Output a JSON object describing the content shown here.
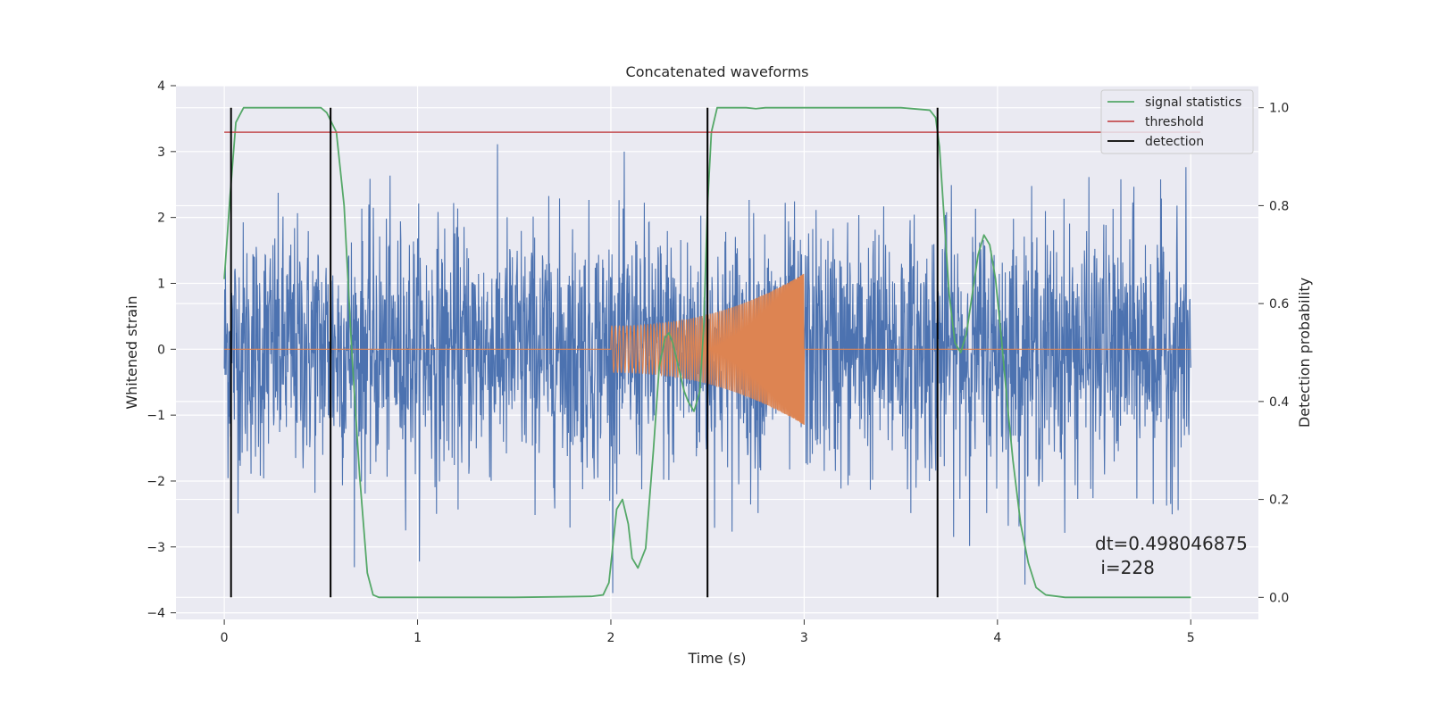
{
  "chart_data": {
    "type": "line",
    "title": "Concatenated waveforms",
    "xlabel": "Time (s)",
    "ylabel": "Whitened strain",
    "ylabel_right": "Detection probability",
    "xlim": [
      -0.25,
      5.35
    ],
    "ylim": [
      -4.1,
      4.0
    ],
    "ylim_right": [
      -0.045,
      1.045
    ],
    "xticks": [
      "0",
      "1",
      "2",
      "3",
      "4",
      "5"
    ],
    "yticks": [
      "4",
      "3",
      "2",
      "1",
      "0",
      "−1",
      "−2",
      "−3",
      "−4"
    ],
    "yticks_right": [
      "1.0",
      "0.8",
      "0.6",
      "0.4",
      "0.2",
      "0.0"
    ],
    "grid": true,
    "legend_placement": "top-right",
    "colors": {
      "noise": "#4c72b0",
      "chirp": "#dd8452",
      "signal_statistics": "#55a868",
      "threshold": "#c44e52",
      "detection": "#000000",
      "background": "#eaeaf2",
      "grid": "#ffffff"
    },
    "noise": {
      "x_range": [
        0,
        5
      ],
      "envelope": [
        -3.7,
        3.6
      ]
    },
    "chirp": {
      "start": 2.0,
      "end": 3.0,
      "amplitude_start": 0.35,
      "amplitude_end": 1.15
    },
    "series": [
      {
        "name": "signal statistics",
        "axis": "right",
        "x": [
          0,
          0.03,
          0.06,
          0.1,
          0.3,
          0.5,
          0.53,
          0.58,
          0.62,
          0.66,
          0.7,
          0.74,
          0.77,
          0.8,
          1.0,
          1.5,
          1.9,
          1.96,
          1.99,
          2.03,
          2.06,
          2.09,
          2.11,
          2.14,
          2.18,
          2.22,
          2.25,
          2.28,
          2.3,
          2.32,
          2.35,
          2.38,
          2.4,
          2.43,
          2.46,
          2.48,
          2.5,
          2.52,
          2.55,
          2.7,
          2.75,
          2.8,
          3.0,
          3.5,
          3.65,
          3.68,
          3.7,
          3.72,
          3.75,
          3.78,
          3.81,
          3.84,
          3.87,
          3.9,
          3.93,
          3.96,
          3.99,
          4.02,
          4.05,
          4.08,
          4.12,
          4.16,
          4.2,
          4.25,
          4.35,
          4.6,
          5.0
        ],
        "y": [
          0.65,
          0.82,
          0.97,
          1.0,
          1.0,
          1.0,
          0.99,
          0.95,
          0.8,
          0.5,
          0.25,
          0.05,
          0.005,
          0.0,
          0.0,
          0.0,
          0.002,
          0.005,
          0.03,
          0.18,
          0.2,
          0.15,
          0.08,
          0.06,
          0.1,
          0.3,
          0.47,
          0.53,
          0.54,
          0.52,
          0.47,
          0.42,
          0.4,
          0.38,
          0.42,
          0.55,
          0.8,
          0.95,
          1.0,
          1.0,
          0.998,
          1.0,
          1.0,
          1.0,
          0.995,
          0.98,
          0.92,
          0.8,
          0.62,
          0.52,
          0.5,
          0.54,
          0.62,
          0.7,
          0.74,
          0.72,
          0.65,
          0.53,
          0.4,
          0.28,
          0.15,
          0.07,
          0.02,
          0.005,
          0.0,
          0.0,
          0.0
        ]
      },
      {
        "name": "threshold",
        "axis": "right",
        "x": [
          0,
          5.05
        ],
        "y": [
          0.95,
          0.95
        ]
      },
      {
        "name": "detection",
        "axis": "right",
        "x": [
          0.035,
          0.55,
          2.5,
          3.69
        ],
        "y": [
          1.0,
          1.0,
          1.0,
          1.0
        ]
      }
    ],
    "legend": [
      "signal statistics",
      "threshold",
      "detection"
    ],
    "annotations": [
      "dt=0.498046875",
      " i=228"
    ]
  }
}
